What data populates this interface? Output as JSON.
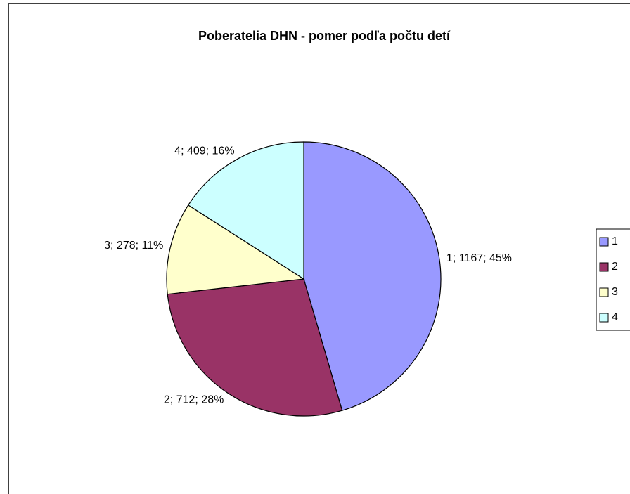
{
  "chart_data": {
    "type": "pie",
    "title": "Poberatelia DHN - pomer podľa počtu detí",
    "categories": [
      "1",
      "2",
      "3",
      "4"
    ],
    "values": [
      1167,
      712,
      278,
      409
    ],
    "value_labels": [
      "1; 1167; 45%",
      "2; 712; 28%",
      "3; 278; 11%",
      "4; 409; 16%"
    ],
    "colors": [
      "#9999FF",
      "#993366",
      "#FFFFCC",
      "#CCFFFF"
    ],
    "legend": "right"
  }
}
